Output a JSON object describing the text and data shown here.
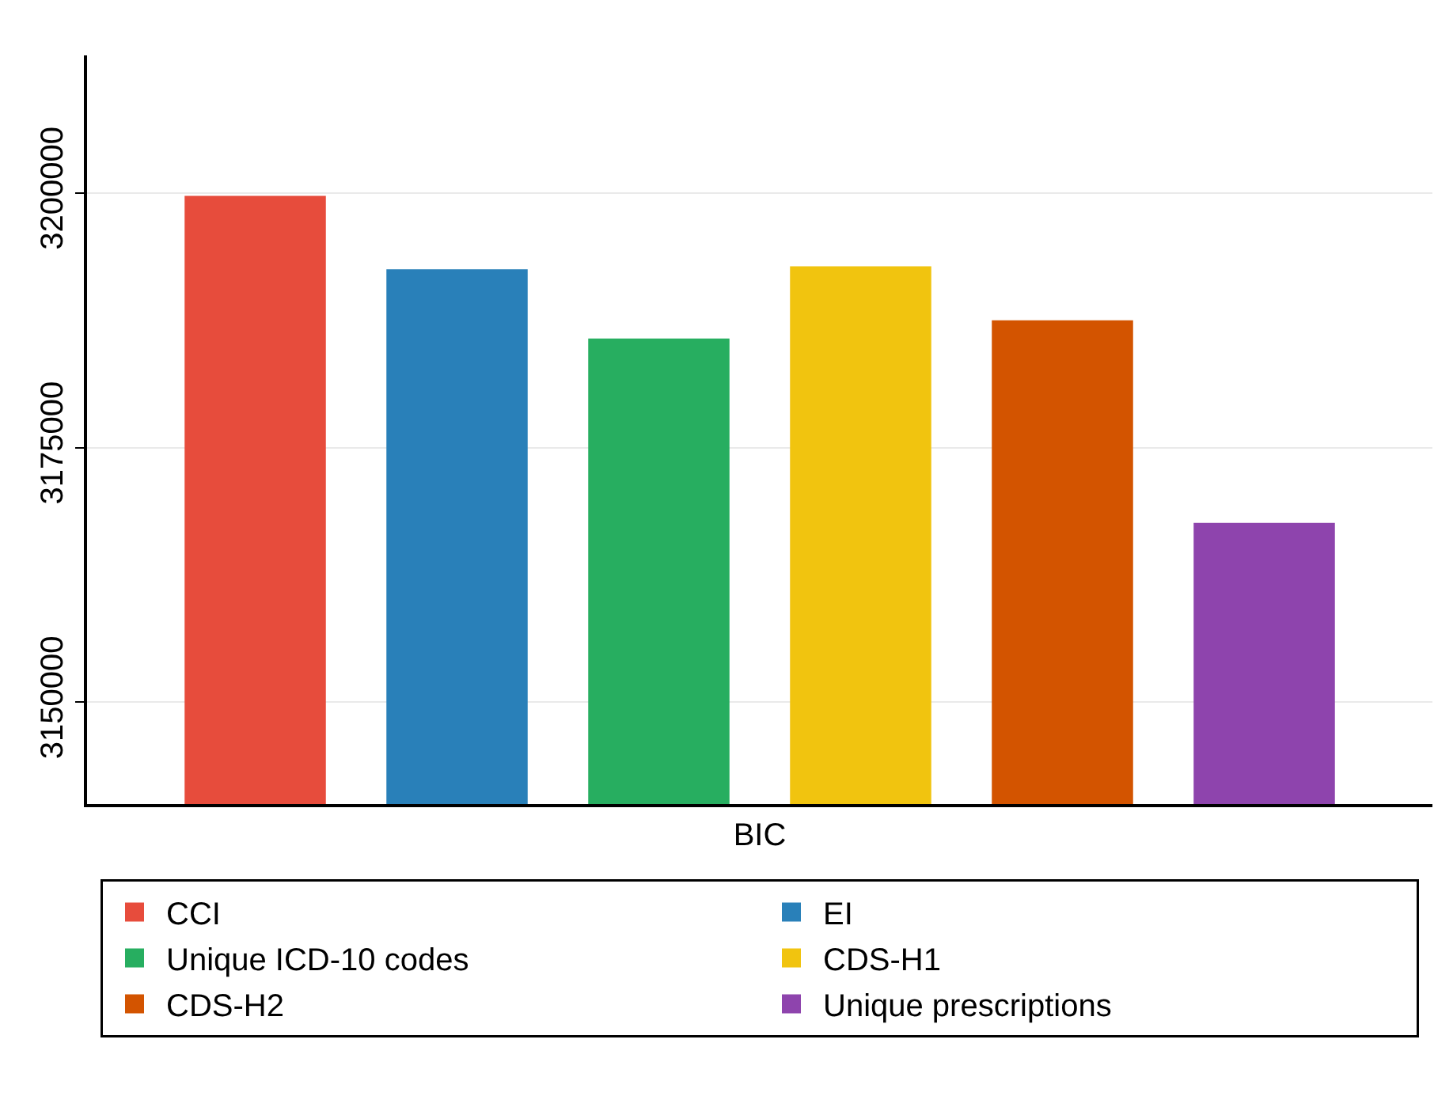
{
  "chart_data": {
    "type": "bar",
    "categories": [
      "BIC"
    ],
    "series": [
      {
        "name": "CCI",
        "color": "#e74c3c",
        "values": [
          3199700
        ]
      },
      {
        "name": "EI",
        "color": "#2980b9",
        "values": [
          3192500
        ]
      },
      {
        "name": "Unique ICD-10 codes",
        "color": "#27ae60",
        "values": [
          3185700
        ]
      },
      {
        "name": "CDS-H1",
        "color": "#f1c40f",
        "values": [
          3192800
        ]
      },
      {
        "name": "CDS-H2",
        "color": "#d35400",
        "values": [
          3187500
        ]
      },
      {
        "name": "Unique prescriptions",
        "color": "#8e44ad",
        "values": [
          3167600
        ]
      }
    ],
    "ylim": [
      3140000,
      3213500
    ],
    "yticks": [
      3150000,
      3175000,
      3200000
    ],
    "grid": "y",
    "legend": "bottom"
  }
}
